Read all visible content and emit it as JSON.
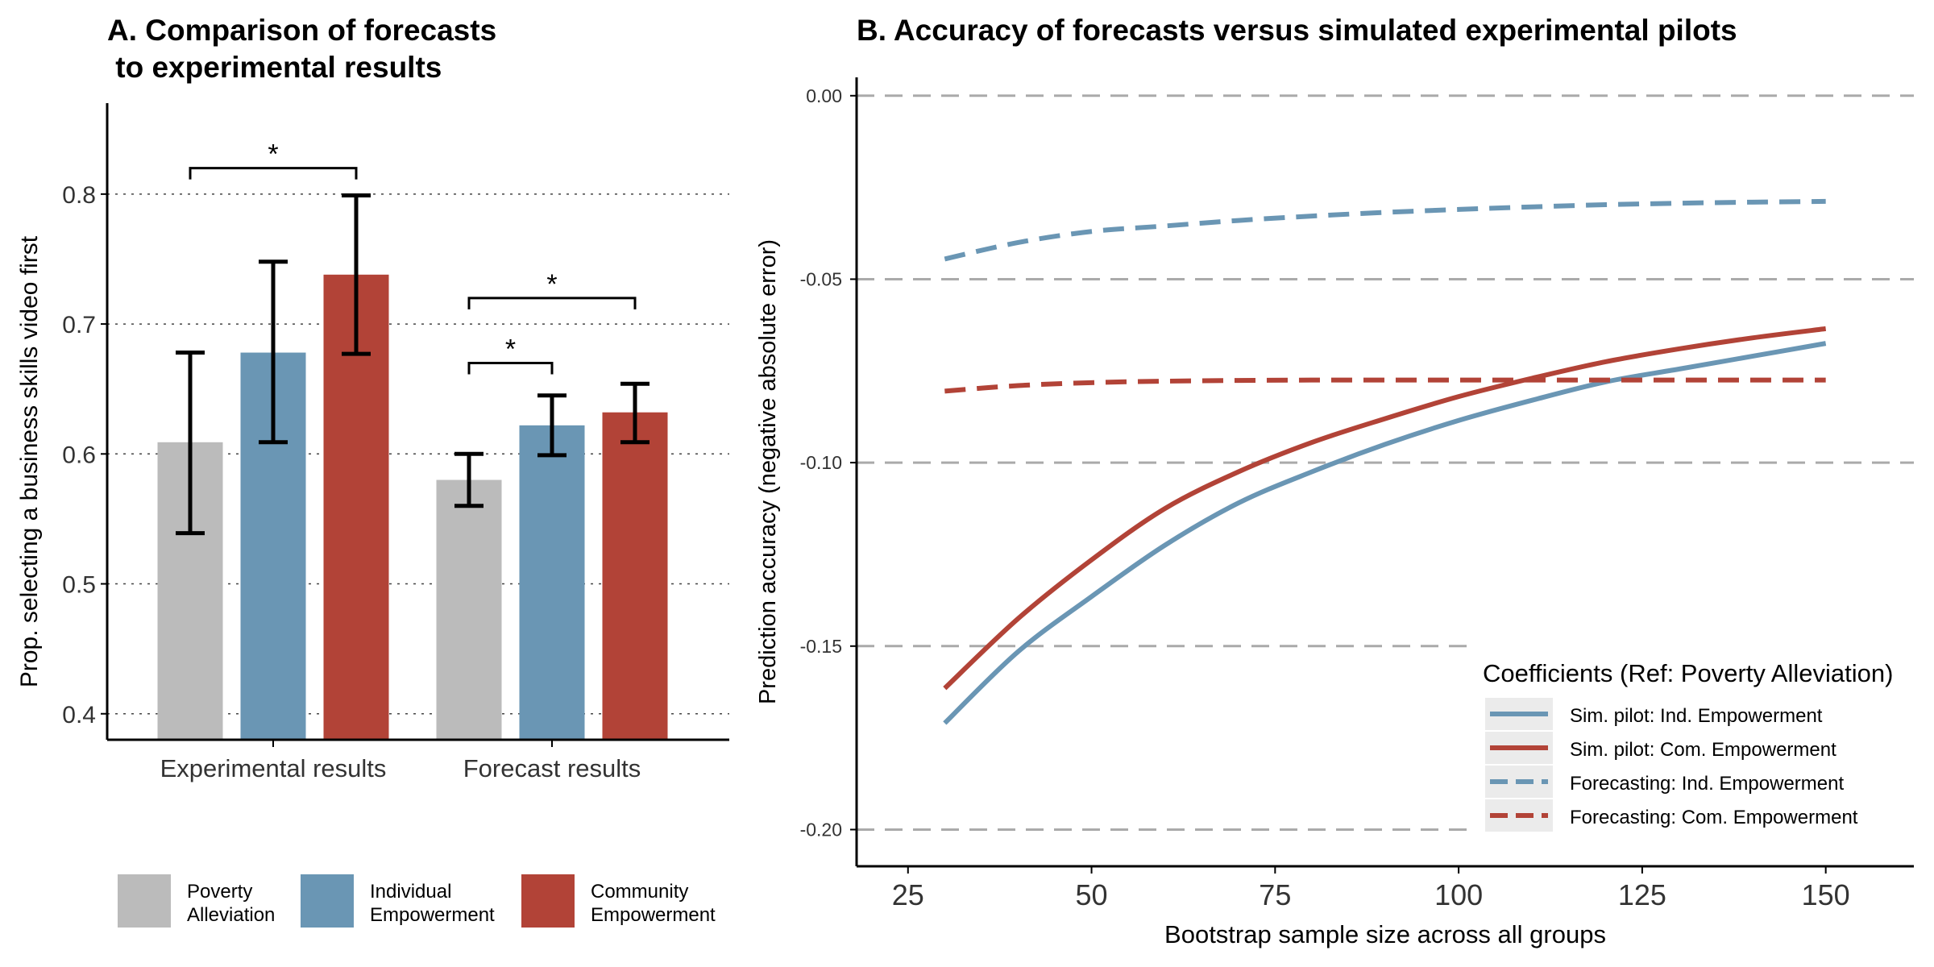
{
  "colors": {
    "poverty": "#BBBBBB",
    "individual": "#6A96B4",
    "community": "#B24337",
    "axis": "#000000",
    "grid_dotted": "#444444",
    "grid_dashed": "#AAAAAA",
    "legend_key_bg": "#EBEBEB"
  },
  "chart_data": [
    {
      "panel": "A",
      "type": "bar",
      "title_line1": "A. Comparison of forecasts",
      "title_line2": " to experimental results",
      "ylabel": "Prop. selecting a business skills video first",
      "xlabel": "",
      "ylim": [
        0.38,
        0.87
      ],
      "yticks": [
        0.4,
        0.5,
        0.6,
        0.7,
        0.8
      ],
      "ytick_labels": [
        "0.4",
        "0.5",
        "0.6",
        "0.7",
        "0.8"
      ],
      "grid": "dotted horizontal",
      "categories": [
        "Experimental results",
        "Forecast results"
      ],
      "series": [
        {
          "name": "Poverty Alleviation",
          "color_key": "poverty",
          "values": [
            0.609,
            0.58
          ],
          "ci_low": [
            0.539,
            0.56
          ],
          "ci_high": [
            0.678,
            0.6
          ]
        },
        {
          "name": "Individual Empowerment",
          "color_key": "individual",
          "values": [
            0.678,
            0.622
          ],
          "ci_low": [
            0.609,
            0.599
          ],
          "ci_high": [
            0.748,
            0.645
          ]
        },
        {
          "name": "Community Empowerment",
          "color_key": "community",
          "values": [
            0.738,
            0.632
          ],
          "ci_low": [
            0.677,
            0.609
          ],
          "ci_high": [
            0.799,
            0.654
          ]
        }
      ],
      "significance": [
        {
          "category": 0,
          "from_series": 0,
          "to_series": 2,
          "y": 0.82,
          "label": "*"
        },
        {
          "category": 1,
          "from_series": 0,
          "to_series": 1,
          "y": 0.67,
          "label": "*"
        },
        {
          "category": 1,
          "from_series": 0,
          "to_series": 2,
          "y": 0.72,
          "label": "*"
        }
      ],
      "legend": {
        "placement": "bottom",
        "entries": [
          {
            "line1": "Poverty",
            "line2": " Alleviation",
            "color_key": "poverty"
          },
          {
            "line1": "Individual",
            "line2": " Empowerment",
            "color_key": "individual"
          },
          {
            "line1": "Community",
            "line2": " Empowerment",
            "color_key": "community"
          }
        ]
      }
    },
    {
      "panel": "B",
      "type": "line",
      "title": "B. Accuracy of forecasts versus simulated experimental pilots",
      "xlabel": "Bootstrap sample size across all groups",
      "ylabel": "Prediction accuracy (negative absolute error)",
      "xlim": [
        18,
        162
      ],
      "ylim": [
        -0.21,
        0.005
      ],
      "xticks": [
        25,
        50,
        75,
        100,
        125,
        150
      ],
      "xtick_labels": [
        "25",
        "50",
        "75",
        "100",
        "125",
        "150"
      ],
      "yticks": [
        0.0,
        -0.05,
        -0.1,
        -0.15,
        -0.2
      ],
      "ytick_labels": [
        "0.00",
        "-0.05",
        "-0.10",
        "-0.15",
        "-0.20"
      ],
      "grid": "dashed horizontal",
      "series": [
        {
          "name": "Sim. pilot: Ind. Empowerment",
          "color_key": "individual",
          "dash": "solid",
          "x": [
            30,
            40,
            50,
            60,
            70,
            80,
            90,
            100,
            110,
            120,
            130,
            140,
            150
          ],
          "y": [
            -0.171,
            -0.1515,
            -0.1365,
            -0.1225,
            -0.111,
            -0.1025,
            -0.095,
            -0.0885,
            -0.083,
            -0.078,
            -0.0745,
            -0.071,
            -0.0675
          ]
        },
        {
          "name": "Sim. pilot: Com. Empowerment",
          "color_key": "community",
          "dash": "solid",
          "x": [
            30,
            40,
            50,
            60,
            70,
            80,
            90,
            100,
            110,
            120,
            130,
            140,
            150
          ],
          "y": [
            -0.1615,
            -0.1425,
            -0.1265,
            -0.1125,
            -0.1025,
            -0.0945,
            -0.088,
            -0.082,
            -0.077,
            -0.0725,
            -0.069,
            -0.066,
            -0.0635
          ]
        },
        {
          "name": "Forecasting: Ind. Empowerment",
          "color_key": "individual",
          "dash": "dashed",
          "x": [
            30,
            40,
            50,
            60,
            70,
            80,
            90,
            100,
            110,
            120,
            130,
            140,
            150
          ],
          "y": [
            -0.0445,
            -0.04,
            -0.037,
            -0.0355,
            -0.034,
            -0.0328,
            -0.0318,
            -0.031,
            -0.0303,
            -0.0297,
            -0.0293,
            -0.029,
            -0.0288
          ]
        },
        {
          "name": "Forecasting: Com. Empowerment",
          "color_key": "community",
          "dash": "dashed",
          "x": [
            30,
            40,
            50,
            60,
            70,
            80,
            90,
            100,
            110,
            120,
            130,
            140,
            150
          ],
          "y": [
            -0.0805,
            -0.079,
            -0.0782,
            -0.0778,
            -0.0776,
            -0.0775,
            -0.0775,
            -0.0775,
            -0.0775,
            -0.0775,
            -0.0775,
            -0.0775,
            -0.0775
          ]
        }
      ],
      "legend": {
        "title": "Coefficients (Ref: Poverty Alleviation)",
        "placement": "bottom-right"
      }
    }
  ]
}
